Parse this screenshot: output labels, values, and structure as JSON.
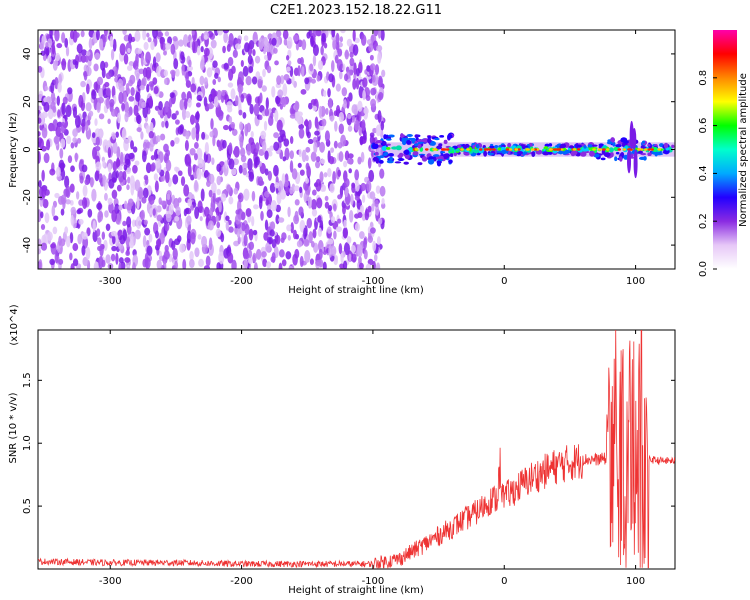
{
  "title": "C2E1.2023.152.18.22.G11",
  "chart_data": [
    {
      "type": "heatmap",
      "xlabel": "Height of straight line (km)",
      "ylabel": "Frequency (Hz)",
      "xlim": [
        -355,
        130
      ],
      "ylim": [
        -50,
        50
      ],
      "xticks": [
        -300,
        -200,
        -100,
        0,
        100
      ],
      "yticks": [
        -40,
        -20,
        0,
        20,
        40
      ],
      "colorbar": {
        "label": "Normalized spectral amplitude",
        "range": [
          0.0,
          1.0
        ],
        "ticks": [
          0.0,
          0.2,
          0.4,
          0.6,
          0.8
        ],
        "colors": [
          "#ffffff",
          "#e6c7f7",
          "#8a2be2",
          "#2200ff",
          "#00aaff",
          "#00ffcc",
          "#00ff00",
          "#ffff00",
          "#ff8800",
          "#ff0000",
          "#ff00aa"
        ]
      },
      "regions": [
        {
          "x_range": [
            -355,
            -100
          ],
          "freq_range": [
            -50,
            50
          ],
          "amplitude": "0.0-0.2"
        },
        {
          "x_range": [
            -100,
            130
          ],
          "freq_center": 0,
          "amplitude": "0.2-0.9"
        }
      ],
      "grid": false
    },
    {
      "type": "line",
      "xlabel": "Height of straight line (km)",
      "ylabel": "SNR (10 * v/v)",
      "y_multiplier": "(x10^4)",
      "xlim": [
        -355,
        130
      ],
      "ylim": [
        0,
        1.9
      ],
      "xticks": [
        -300,
        -200,
        -100,
        0,
        100
      ],
      "yticks": [
        0.5,
        1.0,
        1.5
      ],
      "color": "#ee3333",
      "series": [
        {
          "x": [
            -355,
            -300,
            -250,
            -200,
            -150,
            -120,
            -100,
            -80,
            -60,
            -40,
            -20,
            -10,
            0,
            20,
            40,
            60,
            70,
            80,
            85,
            90,
            95,
            100,
            105,
            110,
            120,
            130
          ],
          "y": [
            0.06,
            0.05,
            0.05,
            0.04,
            0.04,
            0.04,
            0.04,
            0.08,
            0.2,
            0.33,
            0.46,
            0.55,
            0.57,
            0.72,
            0.82,
            0.87,
            0.87,
            0.88,
            0.85,
            0.88,
            0.85,
            0.9,
            0.85,
            0.87,
            0.86,
            0.86
          ]
        }
      ],
      "grid": false
    }
  ]
}
